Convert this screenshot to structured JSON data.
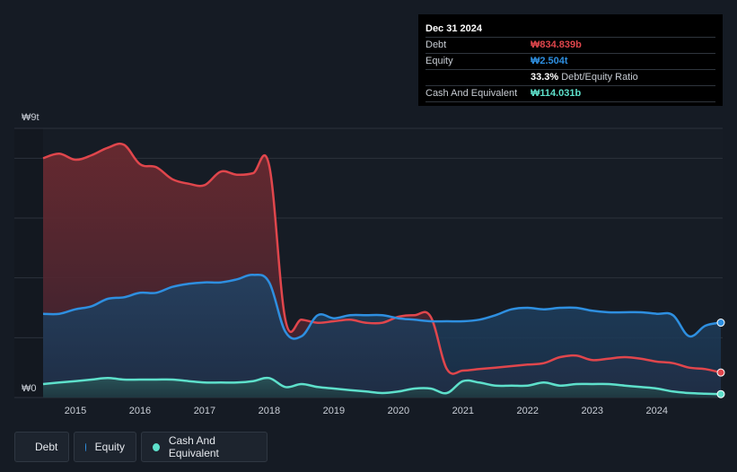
{
  "tooltip": {
    "date": "Dec 31 2024",
    "rows": [
      {
        "label": "Debt",
        "value": "₩834.839b"
      },
      {
        "label": "Equity",
        "value": "₩2.504t"
      },
      {
        "label": "",
        "value": "33.3%",
        "suffix": "Debt/Equity Ratio"
      },
      {
        "label": "Cash And Equivalent",
        "value": "₩114.031b"
      }
    ]
  },
  "legend": [
    {
      "label": "Debt"
    },
    {
      "label": "Equity"
    },
    {
      "label": "Cash And Equivalent"
    }
  ],
  "colors": {
    "debt": "#e0464c",
    "equity": "#2e8fe0",
    "cash": "#5ee0cb",
    "background": "#151b24",
    "grid": "#2c323b"
  },
  "chart_data": {
    "type": "area",
    "title": "",
    "xlabel": "",
    "ylabel": "",
    "y_unit": "KRW trillions",
    "ylim": [
      0,
      9
    ],
    "y_tick_labels": [
      {
        "value": 9,
        "label": "₩9t"
      },
      {
        "value": 0,
        "label": "₩0"
      }
    ],
    "xlim": [
      2014.5,
      2024.99
    ],
    "x_ticks": [
      {
        "value": 2015,
        "label": "2015"
      },
      {
        "value": 2016,
        "label": "2016"
      },
      {
        "value": 2017,
        "label": "2017"
      },
      {
        "value": 2018,
        "label": "2018"
      },
      {
        "value": 2019,
        "label": "2019"
      },
      {
        "value": 2020,
        "label": "2020"
      },
      {
        "value": 2021,
        "label": "2021"
      },
      {
        "value": 2022,
        "label": "2022"
      },
      {
        "value": 2023,
        "label": "2023"
      },
      {
        "value": 2024,
        "label": "2024"
      }
    ],
    "series": [
      {
        "name": "Debt",
        "key": "debt",
        "x": [
          2014.5,
          2014.75,
          2015.0,
          2015.25,
          2015.5,
          2015.75,
          2016.0,
          2016.25,
          2016.5,
          2016.75,
          2017.0,
          2017.25,
          2017.5,
          2017.75,
          2018.0,
          2018.25,
          2018.5,
          2018.75,
          2019.0,
          2019.25,
          2019.5,
          2019.75,
          2020.0,
          2020.25,
          2020.5,
          2020.75,
          2021.0,
          2021.25,
          2021.5,
          2021.75,
          2022.0,
          2022.25,
          2022.5,
          2022.75,
          2023.0,
          2023.25,
          2023.5,
          2023.75,
          2024.0,
          2024.25,
          2024.5,
          2024.75,
          2024.99
        ],
        "values": [
          8.0,
          8.15,
          7.95,
          8.1,
          8.35,
          8.45,
          7.8,
          7.7,
          7.3,
          7.15,
          7.1,
          7.55,
          7.45,
          7.5,
          7.75,
          2.6,
          2.6,
          2.5,
          2.55,
          2.6,
          2.5,
          2.5,
          2.7,
          2.75,
          2.7,
          0.95,
          0.9,
          0.95,
          1.0,
          1.05,
          1.1,
          1.15,
          1.35,
          1.4,
          1.25,
          1.3,
          1.35,
          1.3,
          1.2,
          1.15,
          1.0,
          0.95,
          0.835
        ]
      },
      {
        "name": "Equity",
        "key": "equity",
        "x": [
          2014.5,
          2014.75,
          2015.0,
          2015.25,
          2015.5,
          2015.75,
          2016.0,
          2016.25,
          2016.5,
          2016.75,
          2017.0,
          2017.25,
          2017.5,
          2017.75,
          2018.0,
          2018.25,
          2018.5,
          2018.75,
          2019.0,
          2019.25,
          2019.5,
          2019.75,
          2020.0,
          2020.25,
          2020.5,
          2020.75,
          2021.0,
          2021.25,
          2021.5,
          2021.75,
          2022.0,
          2022.25,
          2022.5,
          2022.75,
          2023.0,
          2023.25,
          2023.5,
          2023.75,
          2024.0,
          2024.25,
          2024.5,
          2024.75,
          2024.99
        ],
        "values": [
          2.8,
          2.8,
          2.95,
          3.05,
          3.3,
          3.35,
          3.5,
          3.5,
          3.7,
          3.8,
          3.85,
          3.85,
          3.95,
          4.1,
          3.85,
          2.2,
          2.05,
          2.75,
          2.65,
          2.75,
          2.75,
          2.75,
          2.65,
          2.6,
          2.55,
          2.55,
          2.55,
          2.6,
          2.75,
          2.95,
          3.0,
          2.95,
          3.0,
          3.0,
          2.9,
          2.85,
          2.85,
          2.85,
          2.8,
          2.75,
          2.05,
          2.4,
          2.504
        ]
      },
      {
        "name": "Cash And Equivalent",
        "key": "cash",
        "x": [
          2014.5,
          2014.75,
          2015.0,
          2015.25,
          2015.5,
          2015.75,
          2016.0,
          2016.25,
          2016.5,
          2016.75,
          2017.0,
          2017.25,
          2017.5,
          2017.75,
          2018.0,
          2018.25,
          2018.5,
          2018.75,
          2019.0,
          2019.25,
          2019.5,
          2019.75,
          2020.0,
          2020.25,
          2020.5,
          2020.75,
          2021.0,
          2021.25,
          2021.5,
          2021.75,
          2022.0,
          2022.25,
          2022.5,
          2022.75,
          2023.0,
          2023.25,
          2023.5,
          2023.75,
          2024.0,
          2024.25,
          2024.5,
          2024.75,
          2024.99
        ],
        "values": [
          0.45,
          0.5,
          0.55,
          0.6,
          0.65,
          0.6,
          0.6,
          0.6,
          0.6,
          0.55,
          0.5,
          0.5,
          0.5,
          0.55,
          0.65,
          0.35,
          0.45,
          0.35,
          0.3,
          0.25,
          0.2,
          0.15,
          0.2,
          0.3,
          0.3,
          0.15,
          0.55,
          0.5,
          0.4,
          0.4,
          0.4,
          0.5,
          0.4,
          0.45,
          0.45,
          0.45,
          0.4,
          0.35,
          0.3,
          0.2,
          0.15,
          0.13,
          0.114
        ]
      }
    ]
  }
}
